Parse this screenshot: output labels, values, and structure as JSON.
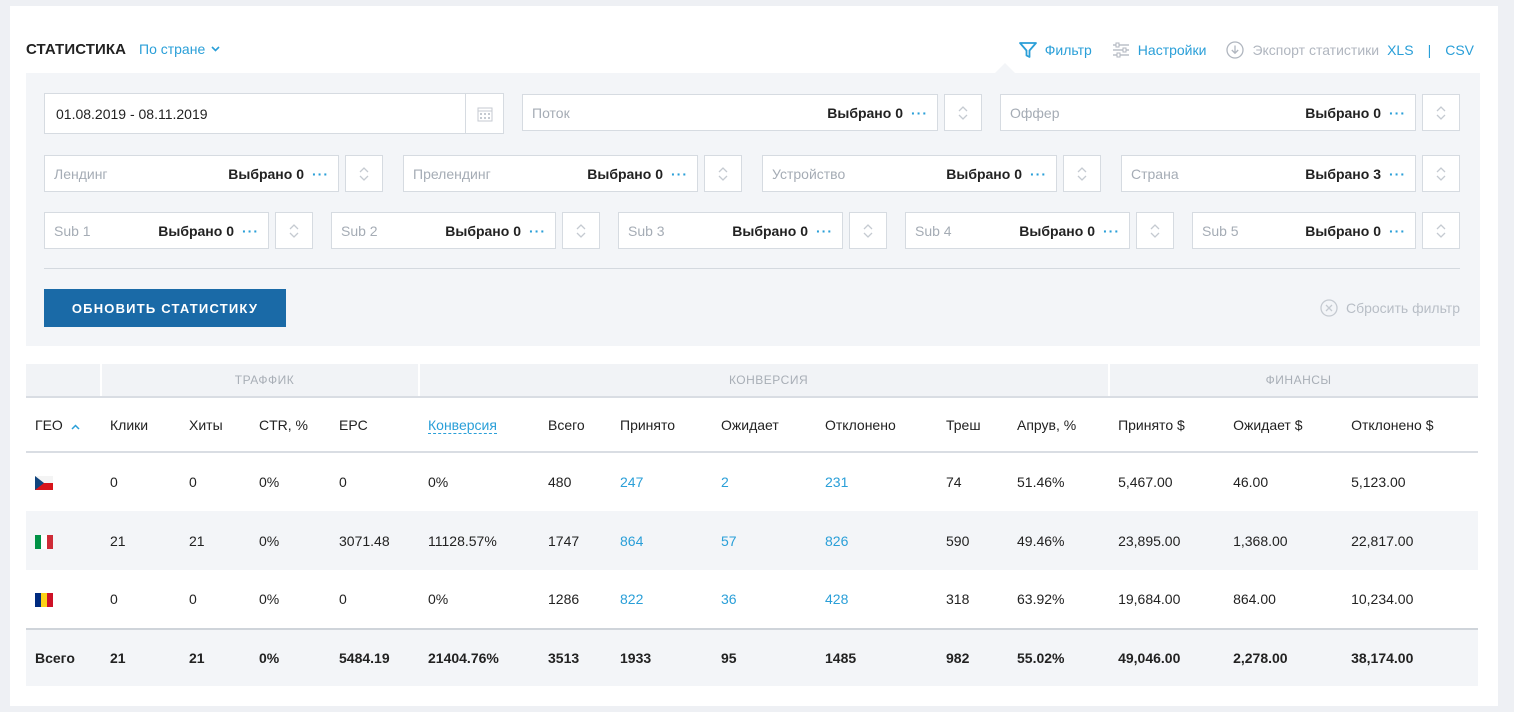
{
  "header": {
    "title": "СТАТИСТИКА",
    "mode": "По стране",
    "filter_label": "Фильтр",
    "settings_label": "Настройки",
    "export_label": "Экспорт статистики",
    "export_xls": "XLS",
    "export_sep": "|",
    "export_csv": "CSV"
  },
  "filters": {
    "date_range": "01.08.2019 - 08.11.2019",
    "stream": {
      "placeholder": "Поток",
      "value": "Выбрано 0"
    },
    "offer": {
      "placeholder": "Оффер",
      "value": "Выбрано 0"
    },
    "landing": {
      "placeholder": "Лендинг",
      "value": "Выбрано 0"
    },
    "prelanding": {
      "placeholder": "Прелендинг",
      "value": "Выбрано 0"
    },
    "device": {
      "placeholder": "Устройство",
      "value": "Выбрано 0"
    },
    "country": {
      "placeholder": "Страна",
      "value": "Выбрано 3"
    },
    "sub1": {
      "placeholder": "Sub 1",
      "value": "Выбрано 0"
    },
    "sub2": {
      "placeholder": "Sub 2",
      "value": "Выбрано 0"
    },
    "sub3": {
      "placeholder": "Sub 3",
      "value": "Выбрано 0"
    },
    "sub4": {
      "placeholder": "Sub 4",
      "value": "Выбрано 0"
    },
    "sub5": {
      "placeholder": "Sub 5",
      "value": "Выбрано 0"
    },
    "dots": "···",
    "refresh_button": "ОБНОВИТЬ СТАТИСТИКУ",
    "reset_label": "Сбросить фильтр"
  },
  "table": {
    "groups": [
      "ТРАФФИК",
      "КОНВЕРСИЯ",
      "ФИНАНСЫ"
    ],
    "columns": [
      "ГЕО",
      "Клики",
      "Хиты",
      "CTR, %",
      "EPC",
      "Конверсия",
      "Всего",
      "Принято",
      "Ожидает",
      "Отклонено",
      "Треш",
      "Апрув, %",
      "Принято $",
      "Ожидает $",
      "Отклонено $"
    ],
    "rows": [
      {
        "flag": "cz",
        "cells": [
          "0",
          "0",
          "0%",
          "0",
          "0%",
          "480",
          "247",
          "2",
          "231",
          "74",
          "51.46%",
          "5,467.00",
          "46.00",
          "5,123.00"
        ]
      },
      {
        "flag": "it",
        "cells": [
          "21",
          "21",
          "0%",
          "3071.48",
          "11128.57%",
          "1747",
          "864",
          "57",
          "826",
          "590",
          "49.46%",
          "23,895.00",
          "1,368.00",
          "22,817.00"
        ]
      },
      {
        "flag": "ro",
        "cells": [
          "0",
          "0",
          "0%",
          "0",
          "0%",
          "1286",
          "822",
          "36",
          "428",
          "318",
          "63.92%",
          "19,684.00",
          "864.00",
          "10,234.00"
        ]
      }
    ],
    "total": [
      "Всего",
      "21",
      "21",
      "0%",
      "5484.19",
      "21404.76%",
      "3513",
      "1933",
      "95",
      "1485",
      "982",
      "55.02%",
      "49,046.00",
      "2,278.00",
      "38,174.00"
    ]
  },
  "colors": {
    "accent": "#2a9fd8",
    "button": "#1a6aa7"
  }
}
